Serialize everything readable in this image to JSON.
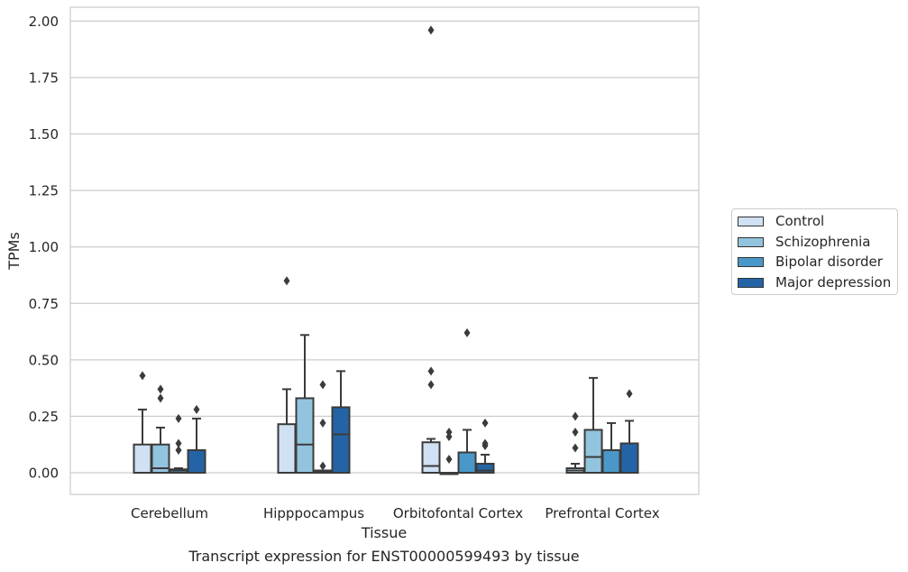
{
  "chart_data": {
    "type": "boxplot",
    "title": "",
    "caption": "Transcript expression for ENST00000599493 by tissue",
    "xlabel": "Tissue",
    "ylabel": "TPMs",
    "ylim": [
      -0.095,
      2.055
    ],
    "yticks": [
      "0.00",
      "0.25",
      "0.50",
      "0.75",
      "1.00",
      "1.25",
      "1.50",
      "1.75",
      "2.00"
    ],
    "ytick_values": [
      0,
      0.25,
      0.5,
      0.75,
      1.0,
      1.25,
      1.5,
      1.75,
      2.0
    ],
    "grid": "horizontal",
    "legend_position": "right",
    "categories": [
      "Cerebellum",
      "Hipppocampus",
      "Orbitofontal Cortex",
      "Prefrontal Cortex"
    ],
    "series": [
      {
        "name": "Control",
        "color": "#cfe1f2",
        "boxes": [
          {
            "q1": 0,
            "median": 0,
            "q3": 0.125,
            "whisker_low": 0,
            "whisker_high": 0.28,
            "outliers": [
              0.43
            ]
          },
          {
            "q1": 0,
            "median": 0,
            "q3": 0.215,
            "whisker_low": 0,
            "whisker_high": 0.37,
            "outliers": [
              0.85
            ]
          },
          {
            "q1": 0,
            "median": 0.03,
            "q3": 0.135,
            "whisker_low": 0,
            "whisker_high": 0.15,
            "outliers": [
              0.39,
              0.45,
              1.96
            ]
          },
          {
            "q1": 0,
            "median": 0.01,
            "q3": 0.02,
            "whisker_low": 0,
            "whisker_high": 0.04,
            "outliers": [
              0.11,
              0.18,
              0.25
            ]
          }
        ]
      },
      {
        "name": "Schizophrenia",
        "color": "#93c4de",
        "boxes": [
          {
            "q1": 0,
            "median": 0.02,
            "q3": 0.125,
            "whisker_low": 0,
            "whisker_high": 0.2,
            "outliers": [
              0.33,
              0.37
            ]
          },
          {
            "q1": 0,
            "median": 0.125,
            "q3": 0.33,
            "whisker_low": 0,
            "whisker_high": 0.61,
            "outliers": []
          },
          {
            "q1": 0,
            "median": 0,
            "q3": 0,
            "whisker_low": 0,
            "whisker_high": 0,
            "outliers": [
              0.06,
              0.16,
              0.18
            ]
          },
          {
            "q1": 0,
            "median": 0.07,
            "q3": 0.19,
            "whisker_low": 0,
            "whisker_high": 0.42,
            "outliers": []
          }
        ]
      },
      {
        "name": "Bipolar disorder",
        "color": "#4a98c9",
        "boxes": [
          {
            "q1": 0,
            "median": 0.01,
            "q3": 0.015,
            "whisker_low": 0,
            "whisker_high": 0.02,
            "outliers": [
              0.1,
              0.13,
              0.24
            ]
          },
          {
            "q1": 0,
            "median": 0.005,
            "q3": 0.01,
            "whisker_low": 0,
            "whisker_high": 0.01,
            "outliers": [
              0.03,
              0.22,
              0.39
            ]
          },
          {
            "q1": 0,
            "median": 0,
            "q3": 0.09,
            "whisker_low": 0,
            "whisker_high": 0.19,
            "outliers": [
              0.62
            ]
          },
          {
            "q1": 0,
            "median": 0,
            "q3": 0.1,
            "whisker_low": 0,
            "whisker_high": 0.22,
            "outliers": []
          }
        ]
      },
      {
        "name": "Major depression",
        "color": "#2464a6",
        "boxes": [
          {
            "q1": 0,
            "median": 0,
            "q3": 0.1,
            "whisker_low": 0,
            "whisker_high": 0.24,
            "outliers": [
              0.28
            ]
          },
          {
            "q1": 0,
            "median": 0.17,
            "q3": 0.29,
            "whisker_low": 0,
            "whisker_high": 0.45,
            "outliers": []
          },
          {
            "q1": 0,
            "median": 0.01,
            "q3": 0.04,
            "whisker_low": 0,
            "whisker_high": 0.08,
            "outliers": [
              0.12,
              0.13,
              0.22
            ]
          },
          {
            "q1": 0,
            "median": 0,
            "q3": 0.13,
            "whisker_low": 0,
            "whisker_high": 0.23,
            "outliers": [
              0.35
            ]
          }
        ]
      }
    ]
  }
}
